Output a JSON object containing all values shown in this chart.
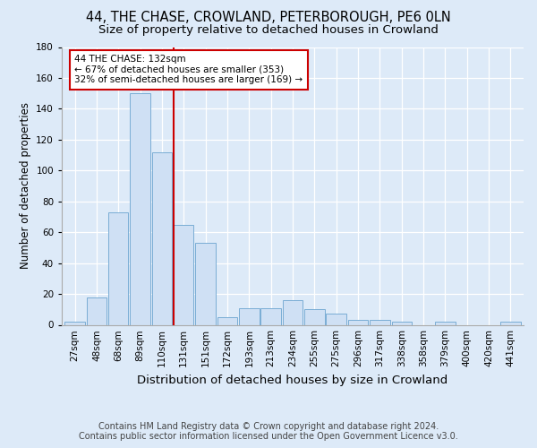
{
  "title1": "44, THE CHASE, CROWLAND, PETERBOROUGH, PE6 0LN",
  "title2": "Size of property relative to detached houses in Crowland",
  "xlabel": "Distribution of detached houses by size in Crowland",
  "ylabel": "Number of detached properties",
  "categories": [
    "27sqm",
    "48sqm",
    "68sqm",
    "89sqm",
    "110sqm",
    "131sqm",
    "151sqm",
    "172sqm",
    "193sqm",
    "213sqm",
    "234sqm",
    "255sqm",
    "275sqm",
    "296sqm",
    "317sqm",
    "338sqm",
    "358sqm",
    "379sqm",
    "400sqm",
    "420sqm",
    "441sqm"
  ],
  "values": [
    2,
    18,
    73,
    150,
    112,
    65,
    53,
    5,
    11,
    11,
    16,
    10,
    7,
    3,
    3,
    2,
    0,
    2,
    0,
    0,
    2
  ],
  "bar_color": "#cfe0f4",
  "bar_edge_color": "#7aadd4",
  "red_line_index": 5,
  "annotation_text": "44 THE CHASE: 132sqm\n← 67% of detached houses are smaller (353)\n32% of semi-detached houses are larger (169) →",
  "annotation_box_color": "white",
  "annotation_box_edge_color": "#cc0000",
  "ylim": [
    0,
    180
  ],
  "yticks": [
    0,
    20,
    40,
    60,
    80,
    100,
    120,
    140,
    160,
    180
  ],
  "footer_line1": "Contains HM Land Registry data © Crown copyright and database right 2024.",
  "footer_line2": "Contains public sector information licensed under the Open Government Licence v3.0.",
  "background_color": "#ddeaf8",
  "plot_bg_color": "#ddeaf8",
  "grid_color": "white",
  "title1_fontsize": 10.5,
  "title2_fontsize": 9.5,
  "xlabel_fontsize": 9.5,
  "ylabel_fontsize": 8.5,
  "tick_fontsize": 7.5,
  "footer_fontsize": 7.0,
  "annot_fontsize": 7.5
}
